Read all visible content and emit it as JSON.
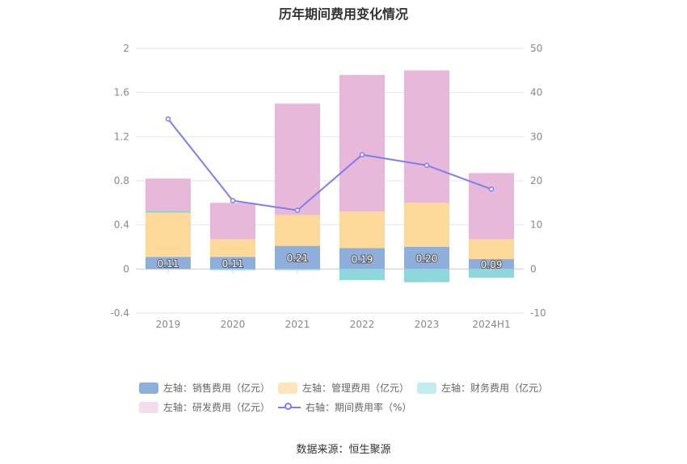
{
  "chart_data": {
    "type": "bar",
    "title": "历年期间费用变化情况",
    "categories": [
      "2019",
      "2020",
      "2021",
      "2022",
      "2023",
      "2024H1"
    ],
    "left_axis": {
      "ylim": [
        -0.4,
        2
      ],
      "ticks": [
        "2",
        "1.6",
        "1.2",
        "0.8",
        "0.4",
        "0",
        "-0.4"
      ],
      "tick_values": [
        2,
        1.6,
        1.2,
        0.8,
        0.4,
        0,
        -0.4
      ]
    },
    "right_axis": {
      "ylim": [
        -10,
        50
      ],
      "ticks": [
        "50",
        "40",
        "30",
        "20",
        "10",
        "0",
        "-10"
      ],
      "tick_values": [
        50,
        40,
        30,
        20,
        10,
        0,
        -10
      ]
    },
    "series": [
      {
        "name": "左轴：销售费用（亿元）",
        "axis": "left",
        "color": "#8eaedc",
        "values": [
          0.11,
          0.11,
          0.21,
          0.19,
          0.2,
          0.09
        ],
        "labels": [
          "0.11",
          "0.11",
          "0.21",
          "0.19",
          "0.20",
          "0.09"
        ]
      },
      {
        "name": "左轴：管理费用（亿元）",
        "axis": "left",
        "color": "#fdd99a",
        "values": [
          0.4,
          0.16,
          0.28,
          0.33,
          0.4,
          0.18
        ]
      },
      {
        "name": "左轴：财务费用（亿元）",
        "axis": "left",
        "color": "#8ed8dc",
        "values": [
          0.02,
          -0.01,
          -0.01,
          -0.1,
          -0.12,
          -0.08
        ]
      },
      {
        "name": "左轴：研发费用（亿元）",
        "axis": "left",
        "color": "#e8b8da",
        "values": [
          0.29,
          0.33,
          1.01,
          1.24,
          1.2,
          0.6
        ]
      },
      {
        "name": "右轴：期间费用率（%）",
        "axis": "right",
        "type": "line",
        "color": "#7b7ff0",
        "values": [
          34.0,
          15.5,
          13.3,
          25.9,
          23.5,
          18.1
        ]
      }
    ]
  },
  "legend": {
    "sales": "左轴：销售费用（亿元）",
    "admin": "左轴：管理费用（亿元）",
    "finance": "左轴：财务费用（亿元）",
    "rnd": "左轴：研发费用（亿元）",
    "rate": "右轴：期间费用率（%）"
  },
  "colors": {
    "sales": "#8eaedc",
    "admin": "#fdd99a",
    "finance": "#8ed8dc",
    "rnd": "#e8b8da",
    "rate": "#7b7ff0"
  },
  "source": "数据来源：恒生聚源"
}
